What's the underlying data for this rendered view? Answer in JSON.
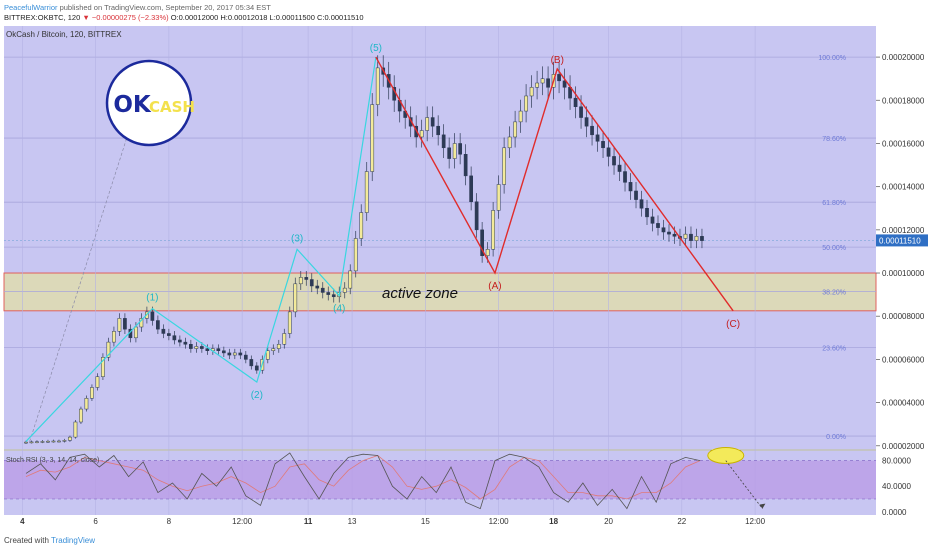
{
  "header": {
    "author": "PeacefulWarrior",
    "published": "published on TradingView.com, September 20, 2017 05:34 EST",
    "ticker": "BITTREX:OKBTC, 120",
    "change": "▼ −0.00000275 (−2.33%)",
    "ohlc": "O:0.00012000 H:0.00012018 L:0.00011500 C:0.00011510"
  },
  "symbol_label": "OkCash / Bitcoin, 120, BITTREX",
  "logo": {
    "ok": "OK",
    "cash": "CASH"
  },
  "footer": {
    "created_with": "Created with",
    "brand": "TradingView"
  },
  "colors": {
    "background": "#c8c6f2",
    "active_zone": "#dcd9b9",
    "zone_border": "#e0605e",
    "wave_impulse": "#39d6e0",
    "wave_corrective": "#e02c2c",
    "candle_up": "#f3ea9a",
    "candle_down": "#2d3a55",
    "stoch_band": "#b999e6",
    "highlight": "#f3ea5a"
  },
  "chart_data": {
    "type": "candlestick",
    "title": "OkCash / Bitcoin, 120, BITTREX",
    "ylim": [
      1.85e-05,
      0.0002144
    ],
    "y_ticks": [
      "0.00020000",
      "0.00018000",
      "0.00016000",
      "0.00014000",
      "0.00012000",
      "0.00010000",
      "0.00008000",
      "0.00006000",
      "0.00004000",
      "0.00002000"
    ],
    "x_ticks": [
      "4",
      "6",
      "8",
      "12:00",
      "11",
      "13",
      "15",
      "12:00",
      "18",
      "20",
      "22",
      "12:00"
    ],
    "last_price": "0.00011510",
    "active_zone": {
      "label": "active zone",
      "low": 8.25e-05,
      "high": 0.0001
    },
    "fibonacci": [
      {
        "label": "100.00%",
        "value": 0.0002
      },
      {
        "label": "78.60%",
        "value": 0.0001625
      },
      {
        "label": "61.80%",
        "value": 0.0001328
      },
      {
        "label": "50.00%",
        "value": 0.000112
      },
      {
        "label": "38.20%",
        "value": 9.15e-05
      },
      {
        "label": "23.60%",
        "value": 6.55e-05
      },
      {
        "label": "0.00%",
        "value": 2.45e-05
      }
    ],
    "waves": [
      {
        "label": "(1)",
        "x": 4.55,
        "y": 8.35e-05
      },
      {
        "label": "(2)",
        "x": 7.4,
        "y": 4.95e-05
      },
      {
        "label": "(3)",
        "x": 8.5,
        "y": 0.000111
      },
      {
        "label": "(4)",
        "x": 9.65,
        "y": 8.95e-05
      },
      {
        "label": "(5)",
        "x": 10.65,
        "y": 0.0002
      },
      {
        "label": "(A)",
        "x": 13.9,
        "y": 0.0001
      },
      {
        "label": "(B)",
        "x": 15.6,
        "y": 0.0001945
      },
      {
        "label": "(C)",
        "x": 20.4,
        "y": 8.25e-05
      }
    ],
    "closes": [
      [
        1.1,
        2.17e-05
      ],
      [
        1.25,
        2.18e-05
      ],
      [
        1.4,
        2.19e-05
      ],
      [
        1.55,
        2.2e-05
      ],
      [
        1.7,
        2.21e-05
      ],
      [
        1.85,
        2.22e-05
      ],
      [
        2.0,
        2.22e-05
      ],
      [
        2.15,
        2.25e-05
      ],
      [
        2.3,
        2.4e-05
      ],
      [
        2.45,
        3.1e-05
      ],
      [
        2.6,
        3.7e-05
      ],
      [
        2.75,
        4.2e-05
      ],
      [
        2.9,
        4.7e-05
      ],
      [
        3.05,
        5.2e-05
      ],
      [
        3.2,
        6.1e-05
      ],
      [
        3.35,
        6.8e-05
      ],
      [
        3.5,
        7.3e-05
      ],
      [
        3.65,
        7.9e-05
      ],
      [
        3.8,
        7.4e-05
      ],
      [
        3.95,
        7e-05
      ],
      [
        4.1,
        7.5e-05
      ],
      [
        4.25,
        7.9e-05
      ],
      [
        4.4,
        8.2e-05
      ],
      [
        4.55,
        7.8e-05
      ],
      [
        4.7,
        7.4e-05
      ],
      [
        4.85,
        7.2e-05
      ],
      [
        5.0,
        7.1e-05
      ],
      [
        5.15,
        6.9e-05
      ],
      [
        5.3,
        6.8e-05
      ],
      [
        5.45,
        6.7e-05
      ],
      [
        5.6,
        6.5e-05
      ],
      [
        5.75,
        6.6e-05
      ],
      [
        5.9,
        6.5e-05
      ],
      [
        6.05,
        6.4e-05
      ],
      [
        6.2,
        6.5e-05
      ],
      [
        6.35,
        6.4e-05
      ],
      [
        6.5,
        6.3e-05
      ],
      [
        6.65,
        6.2e-05
      ],
      [
        6.8,
        6.3e-05
      ],
      [
        6.95,
        6.2e-05
      ],
      [
        7.1,
        6e-05
      ],
      [
        7.25,
        5.7e-05
      ],
      [
        7.4,
        5.5e-05
      ],
      [
        7.55,
        6e-05
      ],
      [
        7.7,
        6.4e-05
      ],
      [
        7.85,
        6.5e-05
      ],
      [
        8.0,
        6.7e-05
      ],
      [
        8.15,
        7.2e-05
      ],
      [
        8.3,
        8.2e-05
      ],
      [
        8.45,
        9.5e-05
      ],
      [
        8.6,
        9.8e-05
      ],
      [
        8.75,
        9.7e-05
      ],
      [
        8.9,
        9.4e-05
      ],
      [
        9.05,
        9.3e-05
      ],
      [
        9.2,
        9.1e-05
      ],
      [
        9.35,
        9e-05
      ],
      [
        9.5,
        8.9e-05
      ],
      [
        9.65,
        9.1e-05
      ],
      [
        9.8,
        9.3e-05
      ],
      [
        9.95,
        0.000101
      ],
      [
        10.1,
        0.000116
      ],
      [
        10.25,
        0.000128
      ],
      [
        10.4,
        0.000147
      ],
      [
        10.55,
        0.000178
      ],
      [
        10.7,
        0.000195
      ],
      [
        10.85,
        0.000192
      ],
      [
        11.0,
        0.000186
      ],
      [
        11.15,
        0.00018
      ],
      [
        11.3,
        0.000175
      ],
      [
        11.45,
        0.000172
      ],
      [
        11.6,
        0.000168
      ],
      [
        11.75,
        0.000163
      ],
      [
        11.9,
        0.000166
      ],
      [
        12.05,
        0.000172
      ],
      [
        12.2,
        0.000168
      ],
      [
        12.35,
        0.000164
      ],
      [
        12.5,
        0.000158
      ],
      [
        12.65,
        0.000153
      ],
      [
        12.8,
        0.00016
      ],
      [
        12.95,
        0.000155
      ],
      [
        13.1,
        0.000145
      ],
      [
        13.25,
        0.000133
      ],
      [
        13.4,
        0.00012
      ],
      [
        13.55,
        0.000108
      ],
      [
        13.7,
        0.000111
      ],
      [
        13.85,
        0.000129
      ],
      [
        14.0,
        0.000141
      ],
      [
        14.15,
        0.000158
      ],
      [
        14.3,
        0.000163
      ],
      [
        14.45,
        0.00017
      ],
      [
        14.6,
        0.000175
      ],
      [
        14.75,
        0.000182
      ],
      [
        14.9,
        0.000186
      ],
      [
        15.05,
        0.000188
      ],
      [
        15.2,
        0.00019
      ],
      [
        15.35,
        0.000186
      ],
      [
        15.5,
        0.000192
      ],
      [
        15.65,
        0.000189
      ],
      [
        15.8,
        0.000186
      ],
      [
        15.95,
        0.000181
      ],
      [
        16.1,
        0.000177
      ],
      [
        16.25,
        0.000172
      ],
      [
        16.4,
        0.000168
      ],
      [
        16.55,
        0.000164
      ],
      [
        16.7,
        0.000161
      ],
      [
        16.85,
        0.000158
      ],
      [
        17.0,
        0.000154
      ],
      [
        17.15,
        0.00015
      ],
      [
        17.3,
        0.000147
      ],
      [
        17.45,
        0.000142
      ],
      [
        17.6,
        0.000138
      ],
      [
        17.75,
        0.000134
      ],
      [
        17.9,
        0.00013
      ],
      [
        18.05,
        0.000126
      ],
      [
        18.2,
        0.000123
      ],
      [
        18.35,
        0.000121
      ],
      [
        18.5,
        0.000119
      ],
      [
        18.65,
        0.000118
      ],
      [
        18.8,
        0.000117
      ],
      [
        18.95,
        0.000116
      ],
      [
        19.1,
        0.000118
      ],
      [
        19.25,
        0.000115
      ],
      [
        19.4,
        0.000117
      ],
      [
        19.55,
        0.000115
      ]
    ],
    "stoch_rsi": {
      "label": "Stoch RSI (3, 3, 14, 14, close)",
      "y_ticks": [
        "80.0000",
        "40.0000",
        "0.0000"
      ],
      "ylim": [
        -5,
        95
      ],
      "band": [
        20,
        80
      ],
      "k": [
        [
          1.1,
          60
        ],
        [
          1.5,
          75
        ],
        [
          1.9,
          50
        ],
        [
          2.3,
          85
        ],
        [
          2.7,
          90
        ],
        [
          3.1,
          70
        ],
        [
          3.5,
          88
        ],
        [
          3.9,
          55
        ],
        [
          4.3,
          78
        ],
        [
          4.7,
          30
        ],
        [
          5.1,
          45
        ],
        [
          5.5,
          20
        ],
        [
          5.9,
          60
        ],
        [
          6.3,
          40
        ],
        [
          6.7,
          70
        ],
        [
          7.1,
          25
        ],
        [
          7.5,
          10
        ],
        [
          7.9,
          75
        ],
        [
          8.3,
          92
        ],
        [
          8.7,
          55
        ],
        [
          9.1,
          20
        ],
        [
          9.5,
          60
        ],
        [
          9.9,
          85
        ],
        [
          10.3,
          90
        ],
        [
          10.7,
          88
        ],
        [
          11.1,
          40
        ],
        [
          11.5,
          20
        ],
        [
          11.9,
          55
        ],
        [
          12.3,
          30
        ],
        [
          12.7,
          70
        ],
        [
          13.1,
          15
        ],
        [
          13.5,
          5
        ],
        [
          13.9,
          80
        ],
        [
          14.3,
          90
        ],
        [
          14.7,
          85
        ],
        [
          15.1,
          70
        ],
        [
          15.5,
          30
        ],
        [
          15.9,
          15
        ],
        [
          16.3,
          45
        ],
        [
          16.7,
          10
        ],
        [
          17.1,
          35
        ],
        [
          17.5,
          5
        ],
        [
          17.9,
          55
        ],
        [
          18.3,
          15
        ],
        [
          18.7,
          75
        ],
        [
          19.1,
          85
        ],
        [
          19.5,
          80
        ]
      ],
      "d": [
        [
          1.1,
          55
        ],
        [
          1.5,
          65
        ],
        [
          1.9,
          62
        ],
        [
          2.3,
          70
        ],
        [
          2.7,
          85
        ],
        [
          3.1,
          80
        ],
        [
          3.5,
          75
        ],
        [
          3.9,
          70
        ],
        [
          4.3,
          65
        ],
        [
          4.7,
          50
        ],
        [
          5.1,
          40
        ],
        [
          5.5,
          33
        ],
        [
          5.9,
          40
        ],
        [
          6.3,
          45
        ],
        [
          6.7,
          55
        ],
        [
          7.1,
          45
        ],
        [
          7.5,
          30
        ],
        [
          7.9,
          40
        ],
        [
          8.3,
          70
        ],
        [
          8.7,
          75
        ],
        [
          9.1,
          50
        ],
        [
          9.5,
          40
        ],
        [
          9.9,
          65
        ],
        [
          10.3,
          80
        ],
        [
          10.7,
          88
        ],
        [
          11.1,
          70
        ],
        [
          11.5,
          40
        ],
        [
          11.9,
          35
        ],
        [
          12.3,
          40
        ],
        [
          12.7,
          50
        ],
        [
          13.1,
          38
        ],
        [
          13.5,
          20
        ],
        [
          13.9,
          35
        ],
        [
          14.3,
          70
        ],
        [
          14.7,
          85
        ],
        [
          15.1,
          80
        ],
        [
          15.5,
          55
        ],
        [
          15.9,
          30
        ],
        [
          16.3,
          30
        ],
        [
          16.7,
          25
        ],
        [
          17.1,
          25
        ],
        [
          17.5,
          20
        ],
        [
          17.9,
          30
        ],
        [
          18.3,
          30
        ],
        [
          18.7,
          45
        ],
        [
          19.1,
          70
        ],
        [
          19.5,
          80
        ]
      ]
    }
  }
}
